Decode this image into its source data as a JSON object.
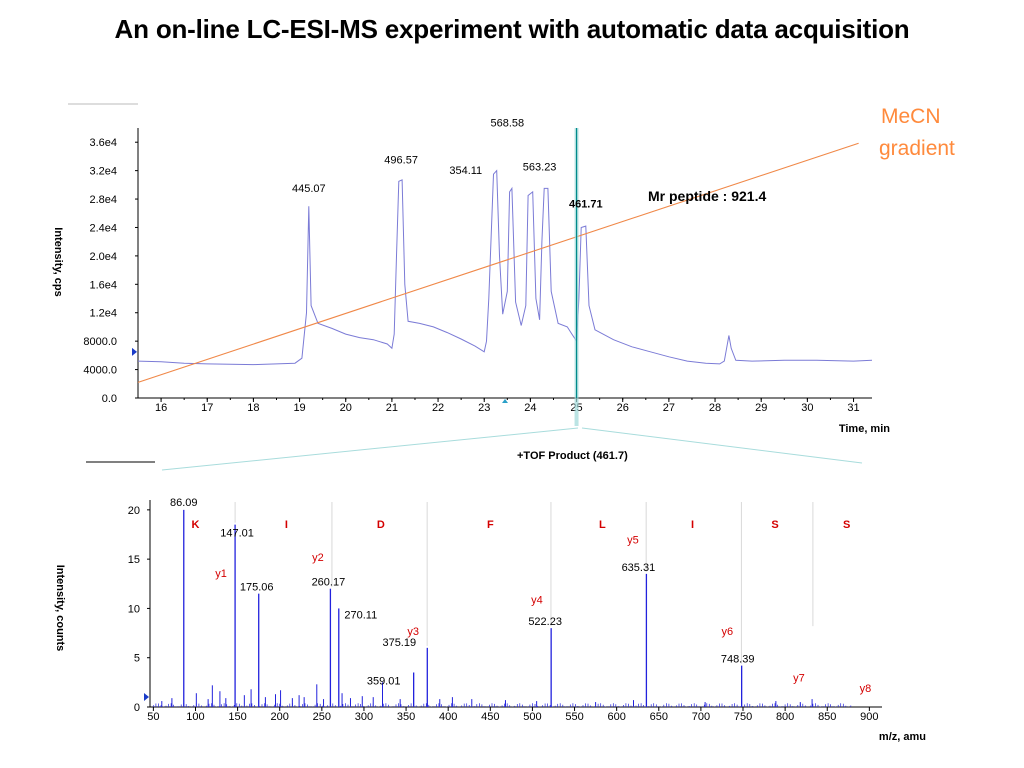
{
  "title": "An on-line LC-ESI-MS experiment with automatic data acquisition",
  "colors": {
    "trace": "#7b7bd6",
    "spectrum": "#2222dd",
    "gradient": "#f08848",
    "marker": "#008b8b",
    "label_red": "#d40000"
  },
  "annotations": {
    "mecn_line1": "MeCN",
    "mecn_line2": "gradient",
    "mr_peptide": "Mr peptide : 921.4",
    "tof_product": "+TOF Product (461.7)"
  },
  "chart_data": [
    {
      "type": "line",
      "name": "LC-MS chromatogram",
      "xlabel": "Time, min",
      "ylabel": "Intensity, cps",
      "xlim": [
        15.5,
        31.4
      ],
      "ylim": [
        0,
        38000
      ],
      "x_ticks": [
        "16",
        "17",
        "18",
        "19",
        "20",
        "21",
        "22",
        "23",
        "24",
        "25",
        "26",
        "27",
        "28",
        "29",
        "30",
        "31"
      ],
      "y_ticks": [
        "0.0",
        "4000.0",
        "8000.0",
        "1.2e4",
        "1.6e4",
        "2.0e4",
        "2.4e4",
        "2.8e4",
        "3.2e4",
        "3.6e4"
      ],
      "peak_labels": [
        {
          "text": "445.07",
          "x": 19.2,
          "y": 29000
        },
        {
          "text": "496.57",
          "x": 21.2,
          "y": 33000
        },
        {
          "text": "354.11",
          "x": 22.6,
          "y": 31500
        },
        {
          "text": "568.58",
          "x": 23.5,
          "y": 38200
        },
        {
          "text": "563.23",
          "x": 24.2,
          "y": 32000
        },
        {
          "text": "461.71",
          "x": 25.2,
          "y": 26800
        }
      ],
      "marker_time": 25.0,
      "series_points": [
        [
          15.5,
          5200
        ],
        [
          16.0,
          5100
        ],
        [
          16.5,
          4900
        ],
        [
          17.0,
          4800
        ],
        [
          17.5,
          4750
        ],
        [
          18.0,
          4700
        ],
        [
          18.5,
          4800
        ],
        [
          18.9,
          4900
        ],
        [
          19.05,
          5600
        ],
        [
          19.15,
          12000
        ],
        [
          19.2,
          27000
        ],
        [
          19.25,
          13000
        ],
        [
          19.4,
          10500
        ],
        [
          19.7,
          9800
        ],
        [
          20.0,
          9000
        ],
        [
          20.3,
          8500
        ],
        [
          20.6,
          8200
        ],
        [
          20.9,
          7600
        ],
        [
          21.0,
          7000
        ],
        [
          21.05,
          9000
        ],
        [
          21.1,
          20000
        ],
        [
          21.15,
          30500
        ],
        [
          21.22,
          30700
        ],
        [
          21.28,
          16000
        ],
        [
          21.35,
          10800
        ],
        [
          21.6,
          10500
        ],
        [
          21.9,
          10000
        ],
        [
          22.2,
          9200
        ],
        [
          22.5,
          8300
        ],
        [
          22.8,
          7300
        ],
        [
          23.0,
          6500
        ],
        [
          23.05,
          8000
        ],
        [
          23.1,
          14000
        ],
        [
          23.2,
          31500
        ],
        [
          23.27,
          32000
        ],
        [
          23.33,
          20000
        ],
        [
          23.4,
          11800
        ],
        [
          23.5,
          15000
        ],
        [
          23.55,
          29000
        ],
        [
          23.6,
          29500
        ],
        [
          23.68,
          13500
        ],
        [
          23.8,
          10200
        ],
        [
          23.9,
          13000
        ],
        [
          23.95,
          28500
        ],
        [
          24.05,
          29000
        ],
        [
          24.12,
          14000
        ],
        [
          24.2,
          11000
        ],
        [
          24.25,
          22000
        ],
        [
          24.3,
          29500
        ],
        [
          24.38,
          29500
        ],
        [
          24.45,
          15000
        ],
        [
          24.6,
          10500
        ],
        [
          24.8,
          10000
        ],
        [
          24.9,
          9000
        ],
        [
          25.0,
          8000
        ],
        [
          25.05,
          14000
        ],
        [
          25.1,
          24000
        ],
        [
          25.2,
          24200
        ],
        [
          25.27,
          13000
        ],
        [
          25.4,
          9600
        ],
        [
          25.8,
          8200
        ],
        [
          26.2,
          7200
        ],
        [
          26.6,
          6500
        ],
        [
          27.0,
          5800
        ],
        [
          27.4,
          5200
        ],
        [
          27.8,
          4900
        ],
        [
          28.1,
          4800
        ],
        [
          28.2,
          5200
        ],
        [
          28.25,
          7000
        ],
        [
          28.3,
          8800
        ],
        [
          28.35,
          7000
        ],
        [
          28.45,
          5300
        ],
        [
          28.8,
          5200
        ],
        [
          29.5,
          5300
        ],
        [
          30.2,
          5300
        ],
        [
          31.0,
          5200
        ],
        [
          31.4,
          5300
        ]
      ],
      "gradient_line": [
        [
          15.5,
          2200
        ],
        [
          31.5,
          36000
        ]
      ]
    },
    {
      "type": "bar",
      "name": "MS/MS spectrum",
      "xlabel": "m/z, amu",
      "ylabel": "Intensity, counts",
      "xlim": [
        46,
        915
      ],
      "ylim": [
        0,
        21
      ],
      "x_ticks": [
        "50",
        "100",
        "150",
        "200",
        "250",
        "300",
        "350",
        "400",
        "450",
        "500",
        "550",
        "600",
        "650",
        "700",
        "750",
        "800",
        "850",
        "900"
      ],
      "y_ticks": [
        "0",
        "5",
        "10",
        "15",
        "20"
      ],
      "peaks": [
        {
          "mz": 86.09,
          "i": 20.0,
          "label": "86.09"
        },
        {
          "mz": 147.01,
          "i": 18.5,
          "label": "147.01"
        },
        {
          "mz": 175.06,
          "i": 11.5,
          "label": "175.06"
        },
        {
          "mz": 260.17,
          "i": 12.0,
          "label": "260.17"
        },
        {
          "mz": 270.11,
          "i": 10.0,
          "label": "270.11"
        },
        {
          "mz": 359.01,
          "i": 3.5,
          "label": "359.01"
        },
        {
          "mz": 375.19,
          "i": 6.0,
          "label": "375.19"
        },
        {
          "mz": 522.23,
          "i": 8.0,
          "label": "522.23"
        },
        {
          "mz": 635.31,
          "i": 13.5,
          "label": "635.31"
        },
        {
          "mz": 748.39,
          "i": 4.2,
          "label": "748.39"
        }
      ],
      "minor_peaks": [
        [
          60,
          0.6
        ],
        [
          72,
          0.9
        ],
        [
          101,
          1.4
        ],
        [
          115,
          0.8
        ],
        [
          120,
          2.2
        ],
        [
          129,
          1.6
        ],
        [
          136,
          0.9
        ],
        [
          158,
          1.2
        ],
        [
          166,
          1.8
        ],
        [
          183,
          1.0
        ],
        [
          195,
          1.3
        ],
        [
          201,
          1.7
        ],
        [
          215,
          0.9
        ],
        [
          223,
          1.2
        ],
        [
          229,
          1.0
        ],
        [
          244,
          2.3
        ],
        [
          252,
          0.8
        ],
        [
          274,
          1.4
        ],
        [
          284,
          0.9
        ],
        [
          298,
          1.1
        ],
        [
          311,
          1.0
        ],
        [
          322,
          2.5
        ],
        [
          343,
          0.8
        ],
        [
          390,
          0.8
        ],
        [
          405,
          1.0
        ],
        [
          428,
          0.8
        ],
        [
          468,
          0.7
        ],
        [
          505,
          0.6
        ],
        [
          575,
          0.5
        ],
        [
          620,
          0.7
        ],
        [
          705,
          0.5
        ],
        [
          789,
          0.6
        ],
        [
          818,
          0.5
        ],
        [
          832,
          0.8
        ]
      ],
      "ion_labels": [
        {
          "text": "y1",
          "x": 147,
          "y": 13.2
        },
        {
          "text": "y2",
          "x": 262,
          "y": 14.8
        },
        {
          "text": "y3",
          "x": 375,
          "y": 7.3
        },
        {
          "text": "y4",
          "x": 522,
          "y": 10.5
        },
        {
          "text": "y5",
          "x": 636,
          "y": 16.6
        },
        {
          "text": "y6",
          "x": 748,
          "y": 7.3
        },
        {
          "text": "y7",
          "x": 833,
          "y": 2.6
        },
        {
          "text": "y8",
          "x": 912,
          "y": 1.5
        }
      ],
      "sequence": [
        {
          "text": "K",
          "x": 100
        },
        {
          "text": "I",
          "x": 208
        },
        {
          "text": "D",
          "x": 320
        },
        {
          "text": "F",
          "x": 450
        },
        {
          "text": "L",
          "x": 583
        },
        {
          "text": "I",
          "x": 690
        },
        {
          "text": "S",
          "x": 788
        },
        {
          "text": "S",
          "x": 873
        }
      ],
      "sequence_dividers": [
        147,
        262,
        375,
        522,
        635,
        748,
        833
      ]
    }
  ]
}
